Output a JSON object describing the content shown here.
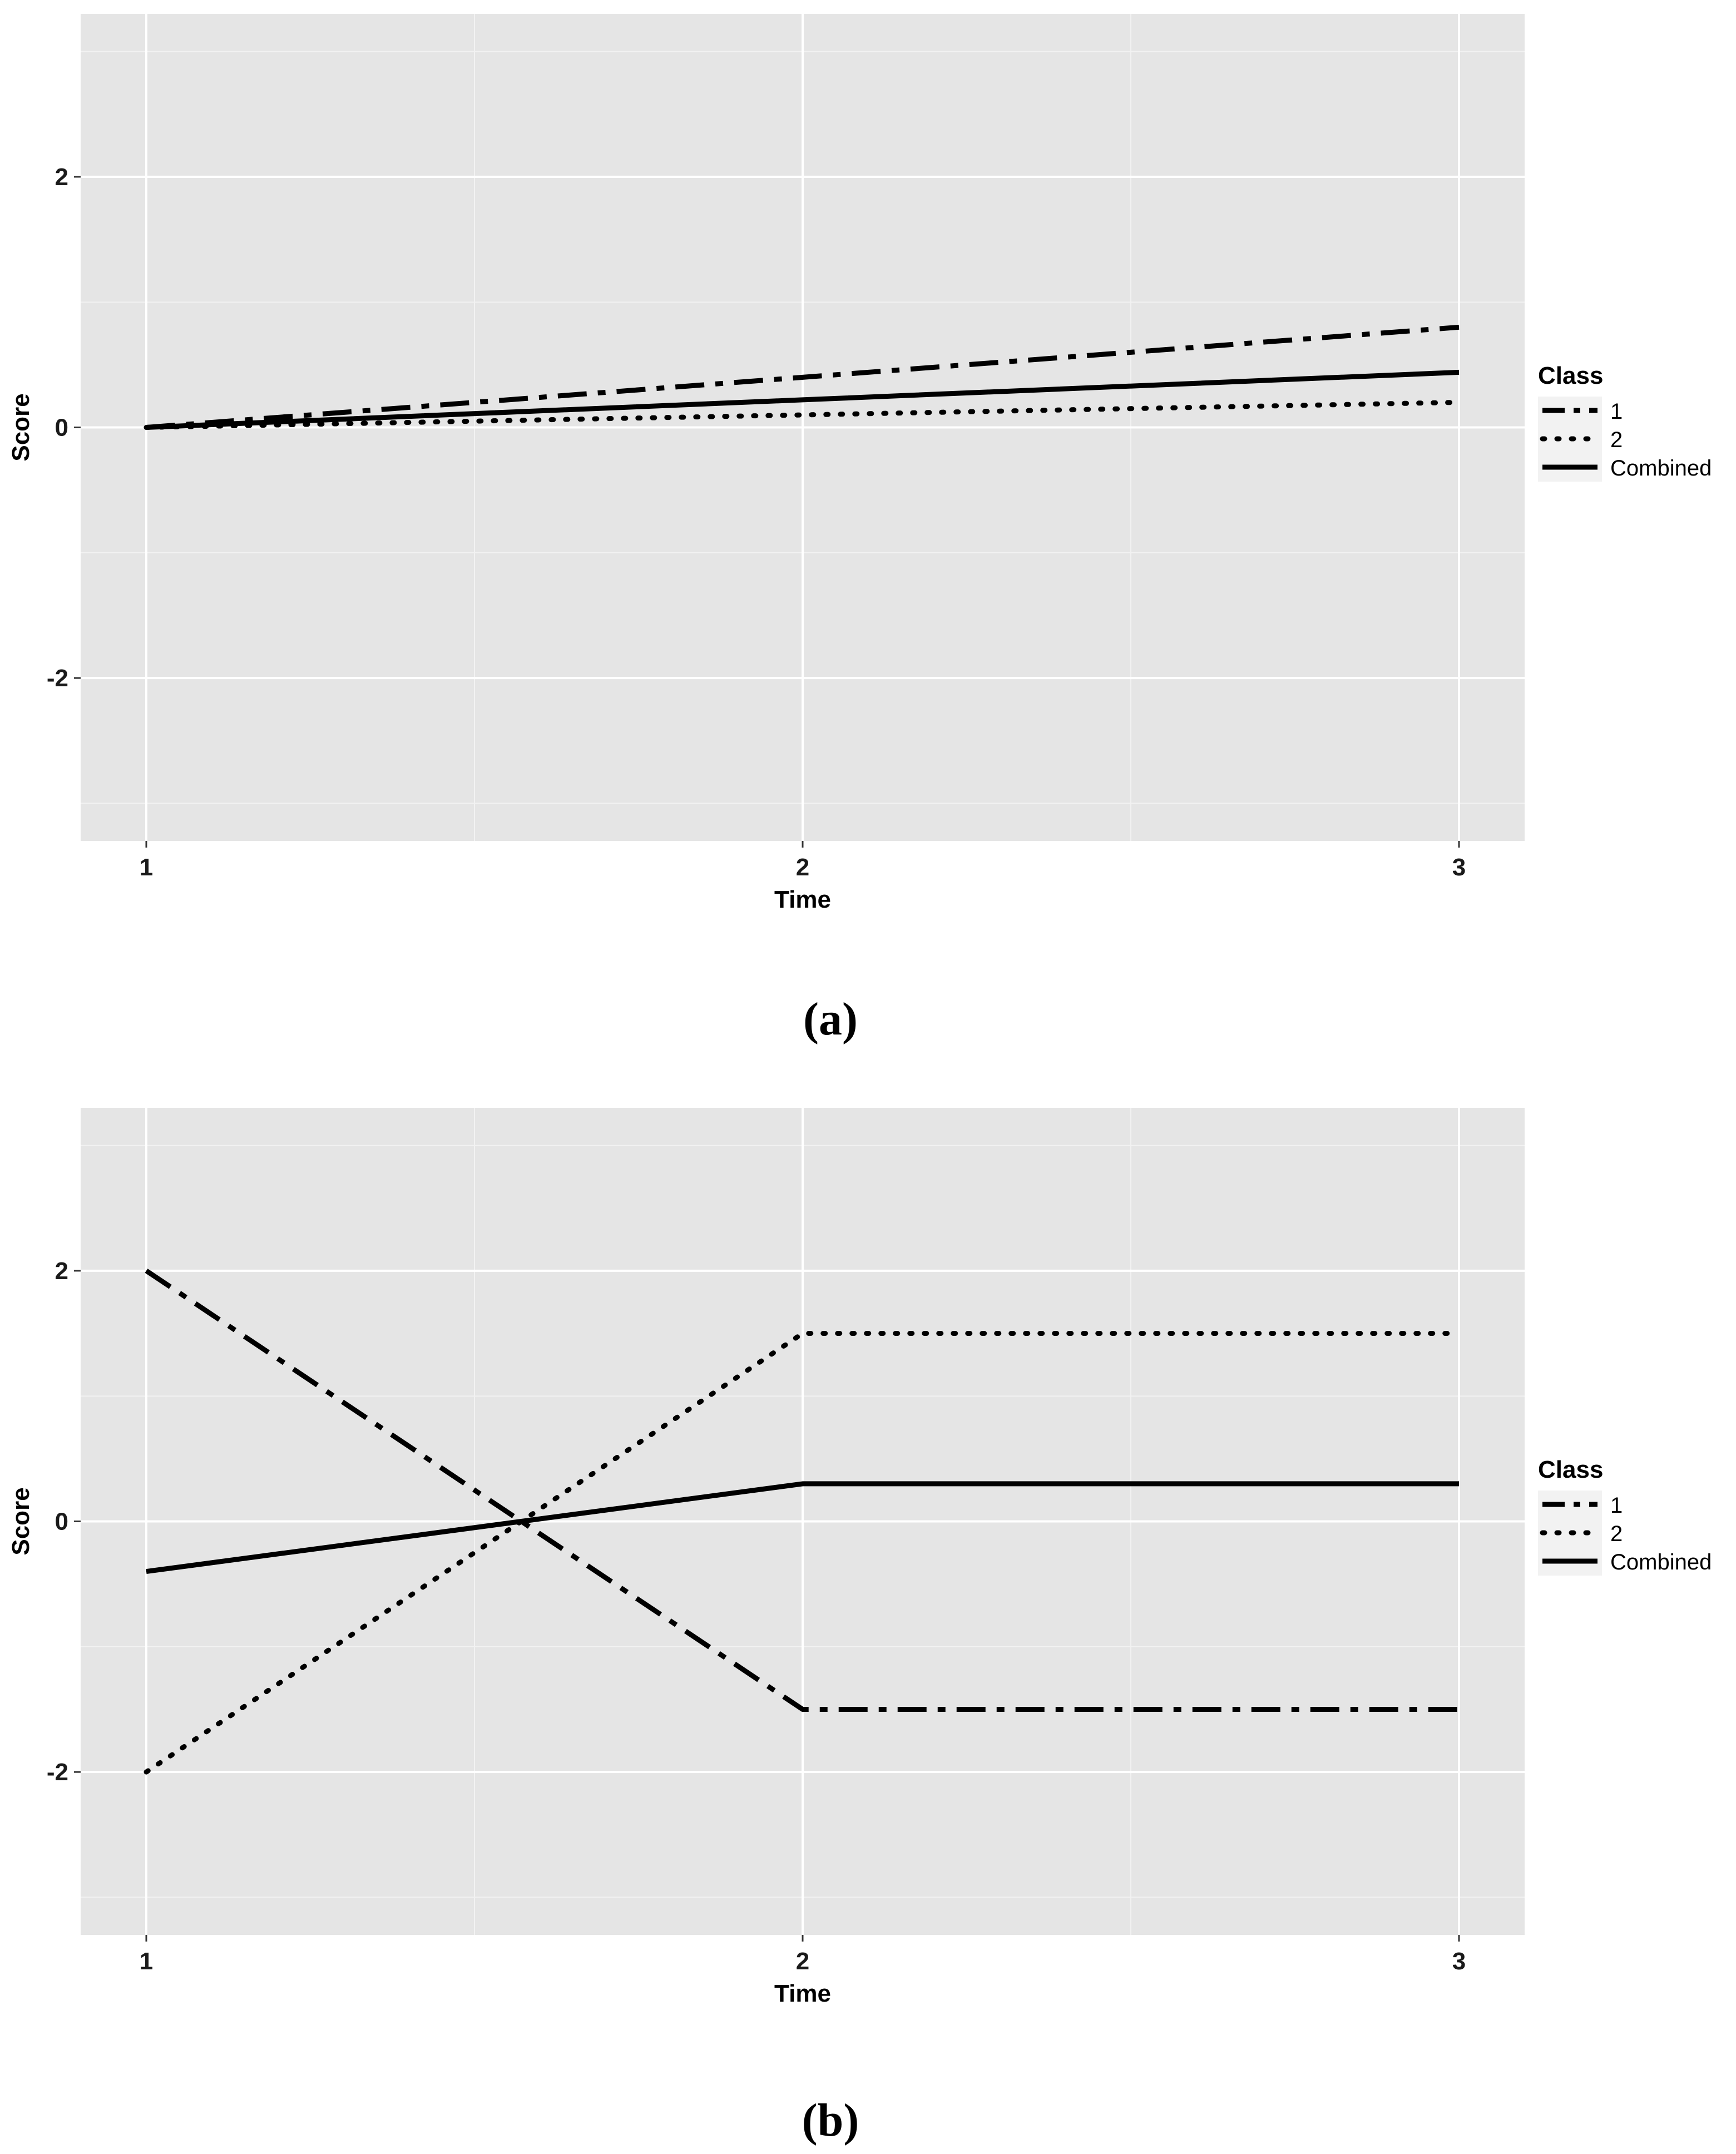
{
  "chart_data": [
    {
      "type": "line",
      "caption": "(a)",
      "xlabel": "Time",
      "ylabel": "Score",
      "x": [
        1,
        2,
        3
      ],
      "x_ticks": [
        "1",
        "2",
        "3"
      ],
      "y_ticks": [
        "2",
        "0",
        "-2"
      ],
      "y_tick_values": [
        2,
        0,
        -2
      ],
      "xlim": [
        0.9,
        3.1
      ],
      "ylim": [
        -3.3,
        3.3
      ],
      "grid": true,
      "legend_position": "right",
      "legend_title": "Class",
      "series": [
        {
          "name": "1",
          "linetype": "dashdot",
          "values": [
            0,
            0.4,
            0.8
          ]
        },
        {
          "name": "2",
          "linetype": "dotted",
          "values": [
            0,
            0.1,
            0.2
          ]
        },
        {
          "name": "Combined",
          "linetype": "solid",
          "values": [
            0,
            0.22,
            0.44
          ]
        }
      ]
    },
    {
      "type": "line",
      "caption": "(b)",
      "xlabel": "Time",
      "ylabel": "Score",
      "x": [
        1,
        2,
        3
      ],
      "x_ticks": [
        "1",
        "2",
        "3"
      ],
      "y_ticks": [
        "2",
        "0",
        "-2"
      ],
      "y_tick_values": [
        2,
        0,
        -2
      ],
      "xlim": [
        0.9,
        3.1
      ],
      "ylim": [
        -3.3,
        3.3
      ],
      "grid": true,
      "legend_position": "right",
      "legend_title": "Class",
      "series": [
        {
          "name": "1",
          "linetype": "dashdot",
          "values": [
            2,
            -1.5,
            -1.5
          ]
        },
        {
          "name": "2",
          "linetype": "dotted",
          "values": [
            -2,
            1.5,
            1.5
          ]
        },
        {
          "name": "Combined",
          "linetype": "solid",
          "values": [
            -0.4,
            0.3,
            0.3
          ]
        }
      ]
    }
  ],
  "colors": {
    "panel_background": "#e5e5e5",
    "grid_major": "#ffffff",
    "grid_minor": "#f2f2f2",
    "line": "#000000",
    "legend_key_background": "#f2f2f2"
  }
}
